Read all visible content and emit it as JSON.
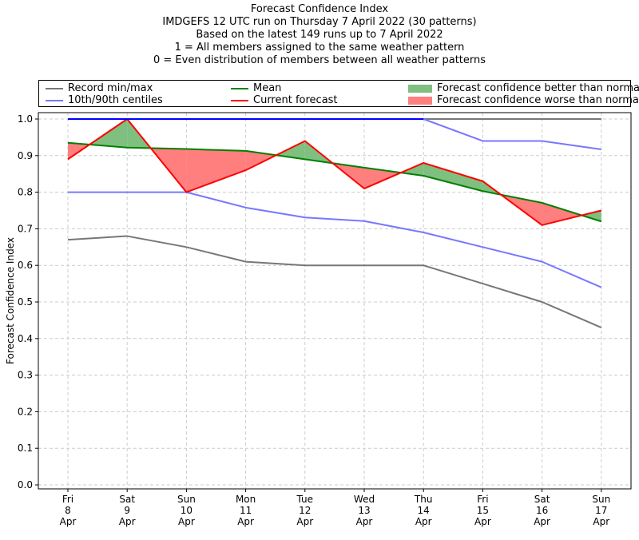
{
  "titles": [
    "Forecast Confidence Index",
    "IMDGEFS 12 UTC run on Thursday 7 April 2022 (30 patterns)",
    "Based on the latest 149 runs up to 7 April 2022",
    "1 = All members assigned to the same weather pattern",
    "0 = Even distribution of members between all weather patterns"
  ],
  "legend": {
    "record": "Record min/max",
    "centiles": "10th/90th centiles",
    "mean": "Mean",
    "current": "Current forecast",
    "better": "Forecast confidence better than normal",
    "worse": "Forecast confidence worse than normal"
  },
  "colors": {
    "record": "#777777",
    "centiles": "#7777ff",
    "top_line": "#0000ff",
    "mean": "#008000",
    "current": "#ff0000",
    "better": "#7fbf7f",
    "worse": "#ff7f7f"
  },
  "chart_data": {
    "type": "line",
    "title": "Forecast Confidence Index",
    "ylabel": "Forecast Confidence Index",
    "ylim": [
      0,
      1.0
    ],
    "yticks": [
      "0.0",
      "0.1",
      "0.2",
      "0.3",
      "0.4",
      "0.5",
      "0.6",
      "0.7",
      "0.8",
      "0.9",
      "1.0"
    ],
    "grid": true,
    "legend_position": "top",
    "categories": [
      [
        "Fri",
        "8",
        "Apr"
      ],
      [
        "Sat",
        "9",
        "Apr"
      ],
      [
        "Sun",
        "10",
        "Apr"
      ],
      [
        "Mon",
        "11",
        "Apr"
      ],
      [
        "Tue",
        "12",
        "Apr"
      ],
      [
        "Wed",
        "13",
        "Apr"
      ],
      [
        "Thu",
        "14",
        "Apr"
      ],
      [
        "Fri",
        "15",
        "Apr"
      ],
      [
        "Sat",
        "16",
        "Apr"
      ],
      [
        "Sun",
        "17",
        "Apr"
      ]
    ],
    "series": [
      {
        "name": "Record max",
        "values": [
          1.0,
          1.0,
          1.0,
          1.0,
          1.0,
          1.0,
          1.0,
          1.0,
          1.0,
          1.0
        ]
      },
      {
        "name": "Record min",
        "values": [
          0.67,
          0.68,
          0.65,
          0.61,
          0.6,
          0.6,
          0.6,
          0.55,
          0.5,
          0.43
        ]
      },
      {
        "name": "90th centile",
        "values": [
          1.0,
          1.0,
          1.0,
          1.0,
          1.0,
          1.0,
          1.0,
          0.94,
          0.94,
          0.917
        ]
      },
      {
        "name": "10th centile",
        "values": [
          0.8,
          0.8,
          0.8,
          0.758,
          0.731,
          0.721,
          0.69,
          0.65,
          0.61,
          0.54
        ]
      },
      {
        "name": "Mean",
        "values": [
          0.935,
          0.922,
          0.918,
          0.913,
          0.89,
          0.867,
          0.845,
          0.803,
          0.771,
          0.72
        ]
      },
      {
        "name": "Current forecast",
        "values": [
          0.89,
          1.0,
          0.8,
          0.86,
          0.94,
          0.81,
          0.88,
          0.83,
          0.71,
          0.75
        ]
      }
    ]
  }
}
